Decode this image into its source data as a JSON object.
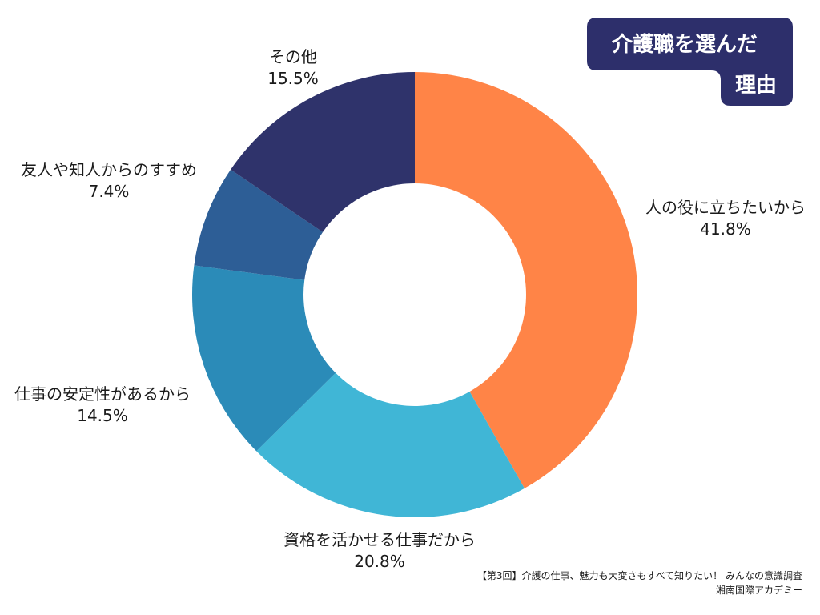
{
  "title_lines": [
    "介護職を選んだ",
    "理由"
  ],
  "chart_data": {
    "type": "pie",
    "donut": true,
    "title": "介護職を選んだ理由",
    "unit": "%",
    "slices": [
      {
        "label": "人の役に立ちたいから",
        "value": 41.8,
        "display": "41.8%",
        "color": "#FF8447"
      },
      {
        "label": "資格を活かせる仕事だから",
        "value": 20.8,
        "display": "20.8%",
        "color": "#40B6D6"
      },
      {
        "label": "仕事の安定性があるから",
        "value": 14.5,
        "display": "14.5%",
        "color": "#2B8BB8"
      },
      {
        "label": "友人や知人からのすすめ",
        "value": 7.4,
        "display": "7.4%",
        "color": "#2D5E96"
      },
      {
        "label": "その他",
        "value": 15.5,
        "display": "15.5%",
        "color": "#2F336B"
      }
    ]
  },
  "title_box_color": "#2D2F6B",
  "footer": {
    "line1": "【第3回】介護の仕事、魅力も大変さもすべて知りたい！ みんなの意識調査",
    "line2": "湘南国際アカデミー"
  }
}
